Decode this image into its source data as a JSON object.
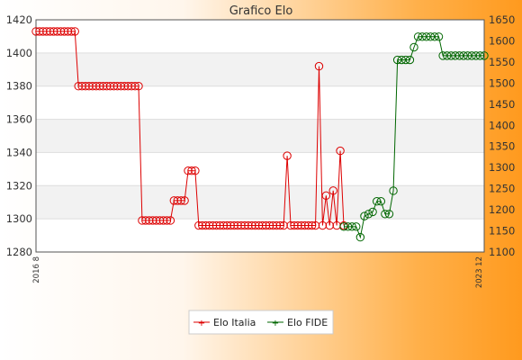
{
  "chart_data": {
    "type": "line",
    "title": "Grafico Elo",
    "y_left": {
      "min": 1280,
      "max": 1420,
      "ticks": [
        1280,
        1300,
        1320,
        1340,
        1360,
        1380,
        1400,
        1420
      ]
    },
    "y_right": {
      "min": 1100,
      "max": 1650,
      "ticks": [
        1100,
        1150,
        1200,
        1250,
        1300,
        1350,
        1400,
        1450,
        1500,
        1550,
        1600,
        1650
      ]
    },
    "x_first_label": "2016 8",
    "x_last_label": "2023 12",
    "grid": true,
    "legend_position": "bottom",
    "series": [
      {
        "name": "Elo Italia",
        "axis": "left",
        "color": "#dd0000",
        "values": [
          1413,
          1413,
          1413,
          1413,
          1413,
          1413,
          1413,
          1413,
          1413,
          1413,
          1413,
          1413,
          1380,
          1380,
          1380,
          1380,
          1380,
          1380,
          1380,
          1380,
          1380,
          1380,
          1380,
          1380,
          1380,
          1380,
          1380,
          1380,
          1380,
          1380,
          1299,
          1299,
          1299,
          1299,
          1299,
          1299,
          1299,
          1299,
          1299,
          1311,
          1311,
          1311,
          1311,
          1329,
          1329,
          1329,
          1296,
          1296,
          1296,
          1296,
          1296,
          1296,
          1296,
          1296,
          1296,
          1296,
          1296,
          1296,
          1296,
          1296,
          1296,
          1296,
          1296,
          1296,
          1296,
          1296,
          1296,
          1296,
          1296,
          1296,
          1296,
          1338,
          1296,
          1296,
          1296,
          1296,
          1296,
          1296,
          1296,
          1296,
          1392,
          1296,
          1314,
          1296,
          1317,
          1296,
          1341,
          1296
        ]
      },
      {
        "name": "Elo FIDE",
        "axis": "right",
        "color": "#006600",
        "values": [
          1160,
          1160,
          1160,
          1160,
          1135,
          1185,
          1190,
          1195,
          1220,
          1220,
          1190,
          1190,
          1245,
          1555,
          1555,
          1555,
          1555,
          1585,
          1610,
          1610,
          1610,
          1610,
          1610,
          1610,
          1565,
          1565,
          1565,
          1565,
          1565,
          1565,
          1565,
          1565,
          1565,
          1565,
          1565
        ]
      }
    ]
  }
}
